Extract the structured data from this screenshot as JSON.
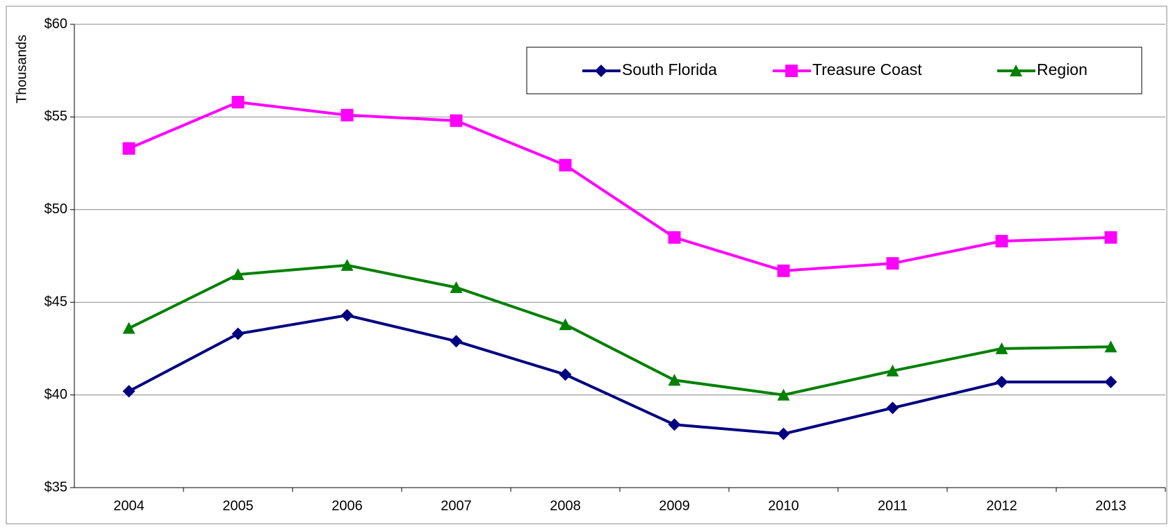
{
  "chart_data": {
    "type": "line",
    "y_label": "Thousands",
    "categories": [
      "2004",
      "2005",
      "2006",
      "2007",
      "2008",
      "2009",
      "2010",
      "2011",
      "2012",
      "2013"
    ],
    "series": [
      {
        "name": "South Florida",
        "color": "#000080",
        "marker": "diamond",
        "values": [
          40.2,
          43.3,
          44.3,
          42.9,
          41.1,
          38.4,
          37.9,
          39.3,
          40.7,
          40.7
        ]
      },
      {
        "name": "Treasure Coast",
        "color": "#ff00ff",
        "marker": "square",
        "values": [
          53.3,
          55.8,
          55.1,
          54.8,
          52.4,
          48.5,
          46.7,
          47.1,
          48.3,
          48.5
        ]
      },
      {
        "name": "Region",
        "color": "#008000",
        "marker": "triangle",
        "values": [
          43.6,
          46.5,
          47.0,
          45.8,
          43.8,
          40.8,
          40.0,
          41.3,
          42.5,
          42.6
        ]
      }
    ],
    "ylim": [
      35,
      60
    ],
    "yticks": [
      {
        "value": 35,
        "label": "$35"
      },
      {
        "value": 40,
        "label": "$40"
      },
      {
        "value": 45,
        "label": "$45"
      },
      {
        "value": 50,
        "label": "$50"
      },
      {
        "value": 55,
        "label": "$55"
      },
      {
        "value": 60,
        "label": "$60"
      }
    ],
    "grid": true,
    "legend": "top"
  }
}
